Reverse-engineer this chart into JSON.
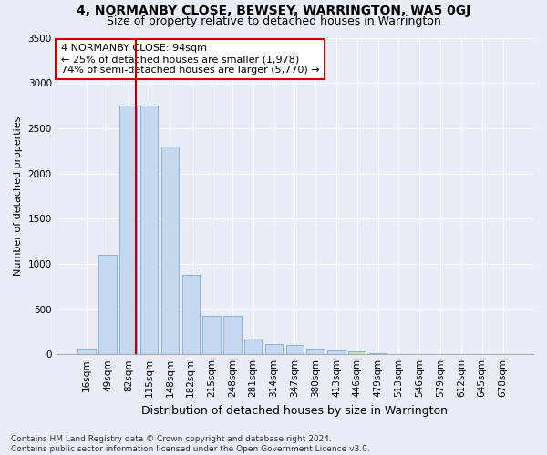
{
  "title": "4, NORMANBY CLOSE, BEWSEY, WARRINGTON, WA5 0GJ",
  "subtitle": "Size of property relative to detached houses in Warrington",
  "xlabel": "Distribution of detached houses by size in Warrington",
  "ylabel": "Number of detached properties",
  "categories": [
    "16sqm",
    "49sqm",
    "82sqm",
    "115sqm",
    "148sqm",
    "182sqm",
    "215sqm",
    "248sqm",
    "281sqm",
    "314sqm",
    "347sqm",
    "380sqm",
    "413sqm",
    "446sqm",
    "479sqm",
    "513sqm",
    "546sqm",
    "579sqm",
    "612sqm",
    "645sqm",
    "678sqm"
  ],
  "values": [
    50,
    1100,
    2750,
    2750,
    2300,
    880,
    420,
    420,
    170,
    110,
    100,
    55,
    45,
    30,
    8,
    4,
    3,
    2,
    1,
    1,
    0
  ],
  "bar_color": "#c5d8f0",
  "bar_edgecolor": "#7aacd6",
  "bg_color": "#e8edf8",
  "grid_color": "#ffffff",
  "vline_color": "#bb0000",
  "annotation_text": "4 NORMANBY CLOSE: 94sqm\n← 25% of detached houses are smaller (1,978)\n74% of semi-detached houses are larger (5,770) →",
  "annotation_box_facecolor": "#ffffff",
  "annotation_box_edgecolor": "#cc0000",
  "footer_line1": "Contains HM Land Registry data © Crown copyright and database right 2024.",
  "footer_line2": "Contains public sector information licensed under the Open Government Licence v3.0.",
  "ylim": [
    0,
    3500
  ],
  "yticks": [
    0,
    500,
    1000,
    1500,
    2000,
    2500,
    3000,
    3500
  ],
  "title_fontsize": 10,
  "subtitle_fontsize": 9,
  "xlabel_fontsize": 9,
  "ylabel_fontsize": 8,
  "tick_fontsize": 7.5,
  "annotation_fontsize": 8,
  "footer_fontsize": 6.5
}
